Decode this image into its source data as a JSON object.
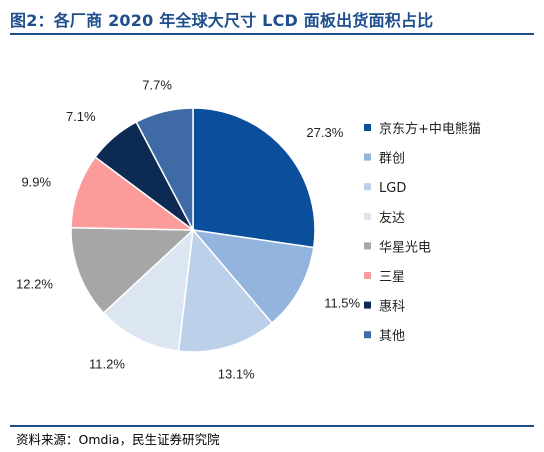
{
  "header": {
    "title": "图2：各厂商 2020 年全球大尺寸 LCD 面板出货面积占比"
  },
  "footer": {
    "source": "资料来源：Omdia，民生证券研究院"
  },
  "chart_data": {
    "type": "pie",
    "title": "",
    "legend_position": "right",
    "slices": [
      {
        "name": "京东方+中电熊猫",
        "value": 27.3,
        "label": "27.3%",
        "color": "#0b4f9c"
      },
      {
        "name": "群创",
        "value": 11.5,
        "label": "11.5%",
        "color": "#93b4dc"
      },
      {
        "name": "LGD",
        "value": 13.1,
        "label": "13.1%",
        "color": "#bcd0ea"
      },
      {
        "name": "友达",
        "value": 11.2,
        "label": "11.2%",
        "color": "#dce6f3"
      },
      {
        "name": "华星光电",
        "value": 12.2,
        "label": "12.2%",
        "color": "#a6a6a6"
      },
      {
        "name": "三星",
        "value": 9.9,
        "label": "9.9%",
        "color": "#fb9b9b"
      },
      {
        "name": "惠科",
        "value": 7.1,
        "label": "7.1%",
        "color": "#0c2a52"
      },
      {
        "name": "其他",
        "value": 7.7,
        "label": "7.7%",
        "color": "#3e6aa5"
      }
    ]
  }
}
